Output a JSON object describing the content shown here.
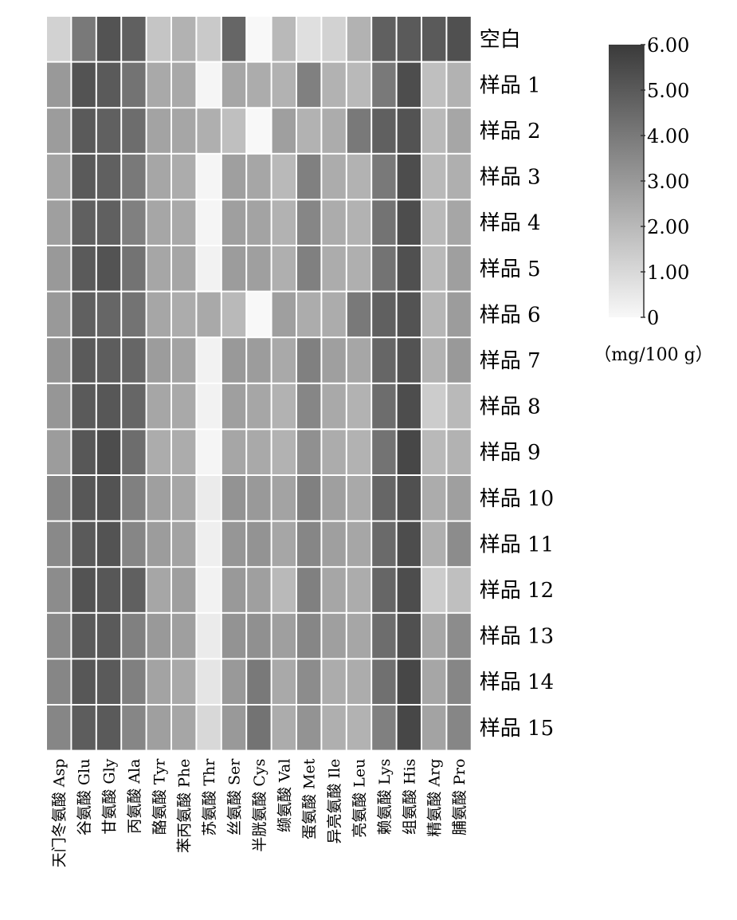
{
  "chart_data": {
    "type": "heatmap",
    "rows": [
      "空白",
      "样品 1",
      "样品 2",
      "样品 3",
      "样品 4",
      "样品 5",
      "样品 6",
      "样品 7",
      "样品 8",
      "样品 9",
      "样品 10",
      "样品 11",
      "样品 12",
      "样品 13",
      "样品 14",
      "样品 15"
    ],
    "columns": [
      "天门冬氨酸 Asp",
      "谷氨酸 Glu",
      "甘氨酸 Gly",
      "丙氨酸 Ala",
      "酪氨酸 Tyr",
      "苯丙氨酸 Phe",
      "苏氨酸 Thr",
      "丝氨酸 Ser",
      "半胱氨酸 Cys",
      "缬氨酸 Val",
      "蛋氨酸 Met",
      "异亮氨酸 Ile",
      "亮氨酸 Leu",
      "赖氨酸 Lys",
      "组氨酸 His",
      "精氨酸 Arg",
      "脯氨酸 Pro"
    ],
    "values": [
      [
        1.2,
        4.0,
        5.2,
        4.8,
        1.6,
        2.2,
        1.5,
        4.6,
        0.0,
        2.0,
        0.8,
        1.2,
        2.2,
        4.8,
        5.0,
        5.0,
        5.3
      ],
      [
        3.0,
        5.2,
        5.0,
        4.2,
        2.5,
        2.5,
        0.1,
        2.6,
        2.4,
        2.2,
        3.8,
        2.2,
        2.0,
        4.0,
        5.4,
        1.8,
        2.2
      ],
      [
        2.9,
        5.0,
        4.8,
        4.4,
        2.7,
        2.6,
        2.3,
        1.8,
        0.0,
        2.8,
        2.2,
        2.4,
        4.0,
        4.8,
        5.2,
        2.0,
        2.6
      ],
      [
        2.7,
        5.0,
        4.8,
        4.0,
        2.6,
        2.4,
        0.1,
        2.8,
        2.6,
        2.0,
        3.8,
        2.4,
        2.2,
        4.0,
        5.4,
        2.0,
        2.3
      ],
      [
        2.8,
        4.8,
        4.8,
        3.8,
        2.6,
        2.5,
        0.1,
        2.8,
        2.7,
        2.2,
        3.6,
        2.4,
        2.2,
        4.2,
        5.4,
        2.0,
        2.6
      ],
      [
        3.0,
        5.0,
        5.2,
        4.2,
        2.6,
        2.6,
        0.2,
        2.9,
        2.8,
        2.3,
        3.8,
        2.4,
        2.3,
        4.2,
        5.3,
        2.0,
        2.8
      ],
      [
        3.0,
        4.8,
        4.6,
        4.2,
        2.6,
        2.4,
        2.5,
        2.0,
        0.0,
        2.8,
        2.4,
        2.4,
        4.0,
        4.8,
        5.2,
        2.1,
        2.9
      ],
      [
        3.2,
        5.0,
        4.9,
        4.6,
        2.9,
        2.7,
        0.2,
        3.0,
        2.9,
        2.5,
        3.8,
        2.8,
        2.6,
        4.6,
        5.2,
        2.2,
        3.0
      ],
      [
        3.1,
        5.0,
        5.1,
        4.6,
        2.6,
        2.5,
        0.2,
        2.8,
        2.6,
        2.2,
        3.6,
        2.5,
        2.2,
        4.4,
        5.4,
        1.4,
        2.0
      ],
      [
        2.9,
        5.1,
        5.4,
        4.4,
        2.4,
        2.4,
        0.1,
        2.6,
        2.5,
        2.2,
        3.3,
        2.4,
        2.2,
        4.2,
        5.6,
        2.0,
        2.2
      ],
      [
        3.6,
        5.1,
        5.2,
        3.8,
        2.8,
        2.6,
        0.4,
        3.2,
        3.0,
        2.7,
        3.8,
        2.8,
        2.5,
        4.6,
        5.3,
        2.4,
        2.8
      ],
      [
        3.5,
        5.0,
        5.2,
        3.6,
        2.9,
        2.7,
        0.3,
        3.1,
        3.2,
        2.6,
        3.6,
        2.8,
        2.6,
        4.5,
        5.4,
        2.3,
        3.4
      ],
      [
        3.4,
        5.2,
        5.1,
        4.8,
        2.6,
        2.8,
        0.2,
        3.0,
        2.8,
        2.0,
        3.8,
        2.6,
        2.4,
        4.6,
        5.4,
        1.4,
        1.8
      ],
      [
        3.5,
        5.0,
        5.0,
        3.8,
        3.0,
        2.8,
        0.4,
        3.2,
        3.3,
        2.8,
        3.6,
        2.8,
        2.6,
        4.4,
        5.3,
        2.6,
        3.4
      ],
      [
        3.6,
        5.1,
        5.0,
        3.8,
        2.7,
        2.5,
        0.6,
        3.0,
        4.0,
        2.5,
        3.4,
        2.4,
        2.4,
        4.3,
        5.6,
        2.6,
        3.6
      ],
      [
        3.6,
        4.9,
        5.0,
        3.6,
        2.8,
        2.6,
        1.0,
        3.0,
        4.2,
        2.4,
        3.2,
        2.3,
        2.2,
        3.8,
        5.6,
        2.7,
        3.6
      ]
    ],
    "colorbar": {
      "ticks": [
        "6.00",
        "5.00",
        "4.00",
        "3.00",
        "2.00",
        "1.00",
        "0"
      ],
      "range": [
        0,
        6
      ],
      "unit": "（mg/100 g）",
      "color_low": "#f8f8f8",
      "color_high": "#3a3a3a"
    },
    "title": "",
    "xlabel": "",
    "ylabel": "",
    "grid": true
  }
}
